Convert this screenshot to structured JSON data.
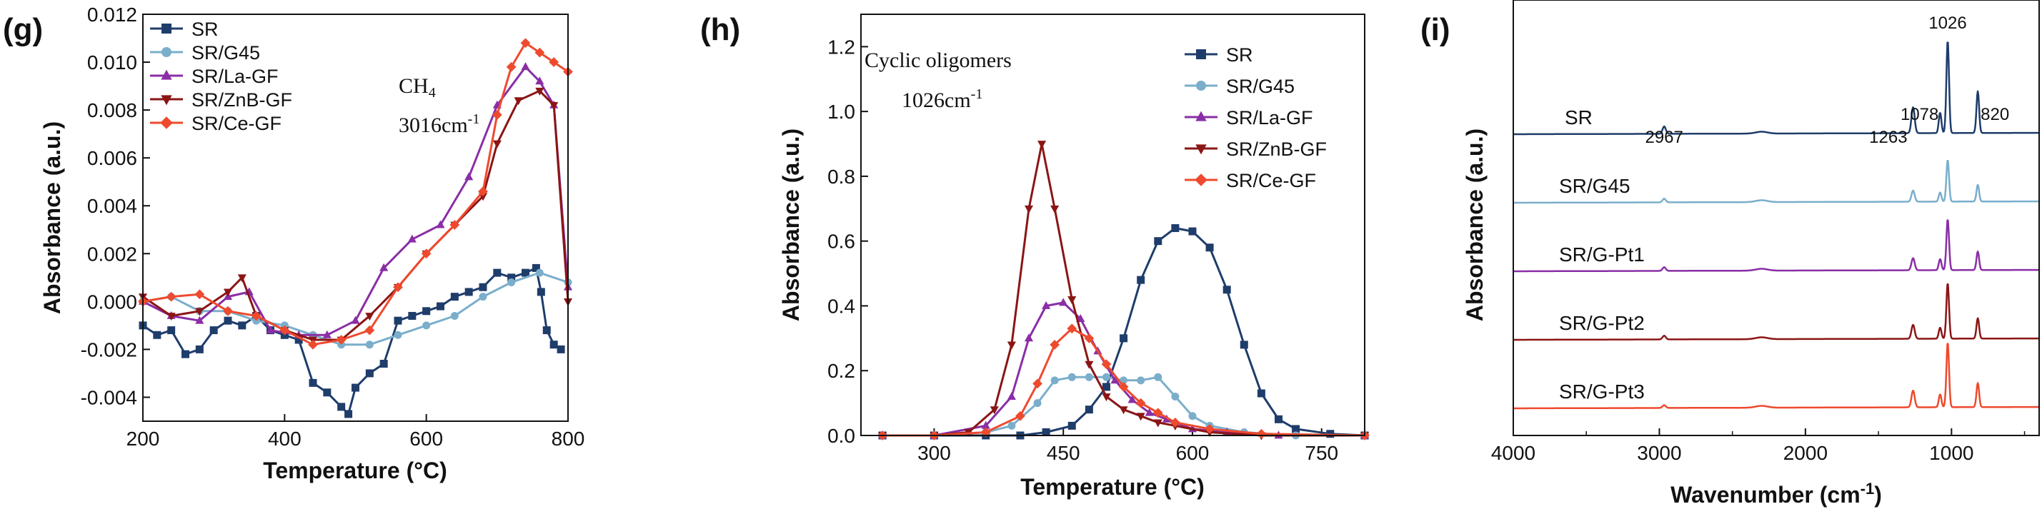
{
  "chart_data": [
    {
      "panel": "(g)",
      "type": "line",
      "xlabel": "Temperature (°C)",
      "ylabel": "Absorbance (a.u.)",
      "xlim": [
        200,
        800
      ],
      "ylim": [
        -0.005,
        0.012
      ],
      "xticks": [
        200,
        400,
        600,
        800
      ],
      "xtick_labels": [
        "200",
        "400",
        "600",
        "800"
      ],
      "yticks": [
        -0.004,
        -0.002,
        0,
        0.002,
        0.004,
        0.006,
        0.008,
        0.01,
        0.012
      ],
      "ytick_labels": [
        "-0.004",
        "-0.002",
        "0.000",
        "0.002",
        "0.004",
        "0.006",
        "0.008",
        "0.010",
        "0.012"
      ],
      "annotation": [
        "CH",
        "4",
        "3016cm",
        "-1"
      ],
      "series": [
        {
          "name": "SR",
          "color": "#1f3d6b",
          "marker": "square",
          "x": [
            200,
            220,
            240,
            260,
            280,
            300,
            320,
            340,
            360,
            380,
            400,
            420,
            440,
            460,
            480,
            490,
            500,
            520,
            540,
            560,
            580,
            600,
            620,
            640,
            660,
            680,
            700,
            720,
            740,
            755,
            762,
            770,
            780,
            790
          ],
          "y": [
            -0.001,
            -0.0014,
            -0.0012,
            -0.0022,
            -0.002,
            -0.0012,
            -0.0008,
            -0.001,
            -0.0006,
            -0.0012,
            -0.0014,
            -0.0016,
            -0.0034,
            -0.0038,
            -0.0044,
            -0.0047,
            -0.0036,
            -0.003,
            -0.0026,
            -0.0008,
            -0.0006,
            -0.0004,
            -0.0002,
            0.0002,
            0.0004,
            0.0006,
            0.0012,
            0.001,
            0.0012,
            0.0014,
            0.0004,
            -0.0012,
            -0.0018,
            -0.002
          ]
        },
        {
          "name": "SR/G45",
          "color": "#7aaecb",
          "marker": "circle",
          "x": [
            200,
            240,
            280,
            320,
            360,
            400,
            440,
            480,
            520,
            560,
            600,
            640,
            680,
            720,
            760,
            800
          ],
          "y": [
            0.0,
            0.0002,
            -0.0004,
            -0.0004,
            -0.0008,
            -0.001,
            -0.0014,
            -0.0018,
            -0.0018,
            -0.0014,
            -0.001,
            -0.0006,
            0.0002,
            0.0008,
            0.0012,
            0.0008
          ]
        },
        {
          "name": "SR/La-GF",
          "color": "#8a2ea6",
          "marker": "triangle",
          "x": [
            200,
            240,
            280,
            320,
            350,
            380,
            420,
            460,
            500,
            540,
            580,
            620,
            660,
            700,
            740,
            760,
            780,
            800
          ],
          "y": [
            0.0,
            -0.0006,
            -0.0008,
            0.0002,
            0.0004,
            -0.0012,
            -0.0014,
            -0.0014,
            -0.0008,
            0.0014,
            0.0026,
            0.0032,
            0.0052,
            0.0082,
            0.0098,
            0.0092,
            0.0082,
            0.0006
          ]
        },
        {
          "name": "SR/ZnB-GF",
          "color": "#8b1515",
          "marker": "triangle-down",
          "x": [
            200,
            240,
            280,
            320,
            340,
            360,
            400,
            440,
            480,
            520,
            560,
            600,
            640,
            680,
            700,
            730,
            760,
            780,
            800
          ],
          "y": [
            0.0002,
            -0.0006,
            -0.0004,
            0.0004,
            0.001,
            -0.0006,
            -0.0012,
            -0.0016,
            -0.0016,
            -0.0006,
            0.0006,
            0.002,
            0.0032,
            0.0044,
            0.0066,
            0.0084,
            0.0088,
            0.0082,
            0.0
          ]
        },
        {
          "name": "SR/Ce-GF",
          "color": "#ee4a2e",
          "marker": "diamond",
          "x": [
            200,
            240,
            280,
            320,
            360,
            400,
            440,
            480,
            520,
            560,
            600,
            640,
            680,
            700,
            720,
            740,
            760,
            780,
            800
          ],
          "y": [
            0.0,
            0.0002,
            0.0003,
            -0.0004,
            -0.0006,
            -0.0012,
            -0.0018,
            -0.0016,
            -0.0012,
            0.0006,
            0.002,
            0.0032,
            0.0046,
            0.0078,
            0.0098,
            0.0108,
            0.0104,
            0.01,
            0.0096
          ]
        }
      ]
    },
    {
      "panel": "(h)",
      "type": "line",
      "xlabel": "Temperature (°C)",
      "ylabel": "Absorbance (a.u.)",
      "xlim": [
        215,
        800
      ],
      "ylim": [
        0,
        1.3
      ],
      "xticks": [
        300,
        450,
        600,
        750
      ],
      "xtick_labels": [
        "300",
        "450",
        "600",
        "750"
      ],
      "yticks": [
        0,
        0.2,
        0.4,
        0.6,
        0.8,
        1.0,
        1.2
      ],
      "ytick_labels": [
        "0.0",
        "0.2",
        "0.4",
        "0.6",
        "0.8",
        "1.0",
        "1.2"
      ],
      "annotation": [
        "Cyclic oligomers",
        "1026cm",
        "-1"
      ],
      "series": [
        {
          "name": "SR",
          "color": "#1f3d6b",
          "marker": "square",
          "x": [
            240,
            300,
            360,
            400,
            430,
            460,
            480,
            500,
            520,
            540,
            560,
            580,
            600,
            620,
            640,
            660,
            680,
            700,
            720,
            760,
            800
          ],
          "y": [
            0,
            0,
            0,
            0,
            0.01,
            0.03,
            0.08,
            0.15,
            0.3,
            0.48,
            0.6,
            0.64,
            0.63,
            0.58,
            0.45,
            0.28,
            0.13,
            0.05,
            0.02,
            0.005,
            0
          ]
        },
        {
          "name": "SR/G45",
          "color": "#7aaecb",
          "marker": "circle",
          "x": [
            240,
            300,
            360,
            390,
            420,
            440,
            460,
            480,
            500,
            520,
            540,
            560,
            580,
            600,
            620,
            660,
            720,
            800
          ],
          "y": [
            0,
            0,
            0.01,
            0.03,
            0.1,
            0.17,
            0.18,
            0.18,
            0.18,
            0.17,
            0.17,
            0.18,
            0.12,
            0.06,
            0.03,
            0.01,
            0,
            0
          ]
        },
        {
          "name": "SR/La-GF",
          "color": "#8a2ea6",
          "marker": "triangle",
          "x": [
            240,
            300,
            360,
            390,
            410,
            430,
            450,
            470,
            490,
            510,
            530,
            550,
            570,
            600,
            640,
            700,
            800
          ],
          "y": [
            0,
            0,
            0.03,
            0.12,
            0.3,
            0.4,
            0.41,
            0.36,
            0.26,
            0.17,
            0.11,
            0.07,
            0.05,
            0.02,
            0.01,
            0,
            0
          ]
        },
        {
          "name": "SR/ZnB-GF",
          "color": "#8b1515",
          "marker": "triangle-down",
          "x": [
            240,
            300,
            340,
            370,
            390,
            410,
            425,
            440,
            460,
            480,
            500,
            520,
            540,
            560,
            580,
            620,
            680,
            800
          ],
          "y": [
            0,
            0,
            0.01,
            0.08,
            0.28,
            0.7,
            0.9,
            0.7,
            0.42,
            0.22,
            0.12,
            0.08,
            0.06,
            0.04,
            0.03,
            0.01,
            0,
            0
          ]
        },
        {
          "name": "SR/Ce-GF",
          "color": "#ee4a2e",
          "marker": "diamond",
          "x": [
            240,
            300,
            360,
            400,
            420,
            440,
            460,
            480,
            500,
            520,
            540,
            560,
            580,
            620,
            680,
            800
          ],
          "y": [
            0,
            0,
            0.01,
            0.06,
            0.16,
            0.28,
            0.33,
            0.3,
            0.22,
            0.15,
            0.1,
            0.07,
            0.04,
            0.02,
            0.005,
            0
          ]
        }
      ]
    },
    {
      "panel": "(i)",
      "type": "line",
      "xlabel": "Wavenumber (cm",
      "xlabel_sup": "-1",
      "xlabel_end": ")",
      "ylabel": "Absorbance (a.u.)",
      "xlim": [
        4000,
        400
      ],
      "xticks": [
        4000,
        3000,
        2000,
        1000
      ],
      "xtick_labels": [
        "4000",
        "3000",
        "2000",
        "1000"
      ],
      "peak_labels": [
        {
          "x": 2967,
          "text": "2967"
        },
        {
          "x": 1263,
          "text": "1263"
        },
        {
          "x": 1078,
          "text": "1078"
        },
        {
          "x": 1026,
          "text": "1026"
        },
        {
          "x": 820,
          "text": "820"
        }
      ],
      "series": [
        {
          "name": "SR",
          "color": "#1f3d6b",
          "offset": 4,
          "peaks": [
            [
              2967,
              0.08
            ],
            [
              1263,
              0.28
            ],
            [
              1078,
              0.22
            ],
            [
              1026,
              1.0
            ],
            [
              820,
              0.45
            ]
          ]
        },
        {
          "name": "SR/G45",
          "color": "#7aaecb",
          "offset": 3,
          "peaks": [
            [
              2967,
              0.04
            ],
            [
              1263,
              0.12
            ],
            [
              1078,
              0.1
            ],
            [
              1026,
              0.45
            ],
            [
              820,
              0.18
            ]
          ]
        },
        {
          "name": "SR/G-Pt1",
          "color": "#8a2ea6",
          "offset": 2,
          "peaks": [
            [
              2967,
              0.04
            ],
            [
              1263,
              0.13
            ],
            [
              1078,
              0.12
            ],
            [
              1026,
              0.55
            ],
            [
              820,
              0.2
            ]
          ]
        },
        {
          "name": "SR/G-Pt2",
          "color": "#8b1515",
          "offset": 1,
          "peaks": [
            [
              2967,
              0.04
            ],
            [
              1263,
              0.15
            ],
            [
              1078,
              0.12
            ],
            [
              1026,
              0.6
            ],
            [
              820,
              0.22
            ]
          ]
        },
        {
          "name": "SR/G-Pt3",
          "color": "#ee4a2e",
          "offset": 0,
          "peaks": [
            [
              2967,
              0.03
            ],
            [
              1263,
              0.18
            ],
            [
              1078,
              0.14
            ],
            [
              1026,
              0.7
            ],
            [
              820,
              0.26
            ]
          ]
        }
      ]
    }
  ]
}
